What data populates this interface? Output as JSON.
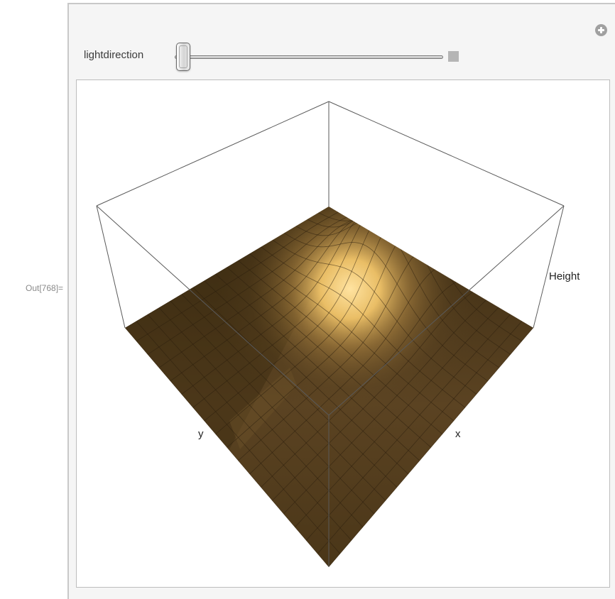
{
  "output_label": "Out[768]=",
  "controls": {
    "lightdirection": {
      "label": "lightdirection",
      "value_fraction": 0.0
    },
    "add_icon": "plus-circle-icon"
  },
  "chart_data": {
    "type": "surface3d",
    "axes": {
      "x": "x",
      "y": "y",
      "z": "Height"
    },
    "box": true,
    "surface_color": "#5b4320",
    "highlight_color": "#ffd98c",
    "box_line_color": "#5a5a5a"
  }
}
